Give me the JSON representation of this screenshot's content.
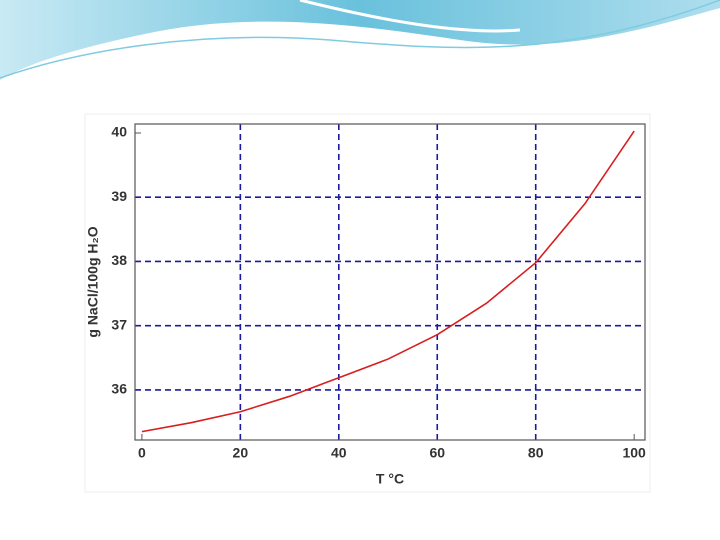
{
  "chart_data": {
    "type": "line",
    "xlabel": "T °C",
    "ylabel": "g NaCl/100g H₂O",
    "x": [
      0,
      10,
      20,
      30,
      40,
      50,
      60,
      70,
      80,
      90,
      100
    ],
    "series": [
      {
        "color": "#d81e1e",
        "values": [
          35.35,
          35.49,
          35.66,
          35.9,
          36.19,
          36.48,
          36.86,
          37.35,
          37.98,
          38.9,
          40.03
        ]
      }
    ],
    "xlim": [
      -1.4,
      102.2
    ],
    "ylim": [
      35.22,
      40.14
    ],
    "xticks": [
      0,
      20,
      40,
      60,
      80,
      100
    ],
    "yticks": [
      36,
      37,
      38,
      39,
      40
    ],
    "grid": true,
    "grid_color": "#1a1aa0"
  }
}
